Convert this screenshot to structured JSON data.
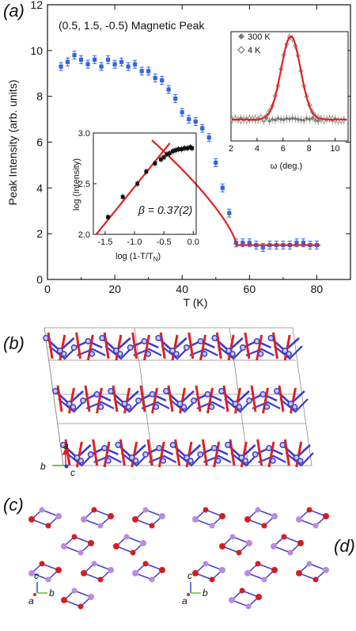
{
  "panel_labels": {
    "a": "(a)",
    "b": "(b)",
    "c": "(c)",
    "d": "(d)"
  },
  "colors": {
    "data": "#3366dd",
    "fit": "#e32222",
    "gray": "#8a8a8a",
    "bond": "#3b3bd0",
    "spin": "#e02020",
    "mn": "#d61d1d",
    "light": "#b98be0"
  },
  "chart_data": [
    {
      "type": "scatter",
      "title": "(0.5, 1.5, -0.5) Magnetic Peak",
      "xlabel": "T (K)",
      "ylabel": "Peak Intensity (arb. units)",
      "xlim": [
        0,
        90
      ],
      "ylim": [
        0,
        12
      ],
      "xticks": [
        "0",
        "20",
        "40",
        "60",
        "80"
      ],
      "yticks": [
        "0",
        "2",
        "4",
        "6",
        "8",
        "10",
        "12"
      ],
      "series": [
        {
          "x": [
            4,
            6,
            8,
            10,
            12,
            14,
            16,
            18,
            20,
            22,
            24,
            26,
            28,
            30,
            32,
            34,
            36,
            38,
            40,
            42,
            44,
            46,
            48,
            50,
            52,
            54,
            56,
            58,
            60,
            62,
            64,
            66,
            68,
            70,
            72,
            74,
            76,
            78,
            80
          ],
          "y": [
            9.3,
            9.5,
            9.8,
            9.6,
            9.4,
            9.6,
            9.3,
            9.6,
            9.4,
            9.5,
            9.3,
            9.4,
            9.1,
            9.1,
            8.8,
            8.7,
            8.3,
            7.9,
            7.3,
            7.0,
            6.9,
            6.6,
            6.2,
            5.1,
            4.0,
            2.9,
            1.6,
            1.6,
            1.6,
            1.5,
            1.4,
            1.5,
            1.5,
            1.5,
            1.5,
            1.6,
            1.6,
            1.5,
            1.5
          ]
        }
      ],
      "fit_label": "",
      "annotation": "β = 0.37(2)"
    },
    {
      "type": "scatter",
      "xlabel": "ω (deg.)",
      "xlim": [
        2,
        11
      ],
      "xticks": [
        "2",
        "4",
        "6",
        "8",
        "10"
      ],
      "legend": [
        "300 K",
        "4 K"
      ],
      "legend_position": "top-left"
    },
    {
      "type": "scatter",
      "xlabel": "log (1-T/T",
      "xlabel_sub": "N",
      "xlabel_close": ")",
      "ylabel": "log (Intensity)",
      "xlim": [
        -1.7,
        0.05
      ],
      "ylim": [
        2.0,
        3.0
      ],
      "xticks": [
        "-1.5",
        "-1.0",
        "-0.5",
        "0.0"
      ],
      "yticks": [
        "2.0",
        "2.5",
        "3.0"
      ],
      "series": [
        {
          "x": [
            -1.45,
            -1.2,
            -0.95,
            -0.8,
            -0.65,
            -0.55,
            -0.5,
            -0.45,
            -0.4,
            -0.35,
            -0.3,
            -0.25,
            -0.2,
            -0.15,
            -0.1,
            -0.05,
            -0.02
          ],
          "y": [
            2.17,
            2.37,
            2.5,
            2.62,
            2.7,
            2.74,
            2.76,
            2.79,
            2.8,
            2.82,
            2.83,
            2.84,
            2.84,
            2.85,
            2.85,
            2.86,
            2.85
          ]
        }
      ]
    }
  ],
  "axes_labels_b": {
    "a": "a",
    "b": "b",
    "c": "c"
  },
  "axes_labels_c": {
    "c": "c",
    "b": "b",
    "a": "a"
  },
  "axes_labels_d": {
    "c": "c",
    "b": "b",
    "a": "a"
  }
}
